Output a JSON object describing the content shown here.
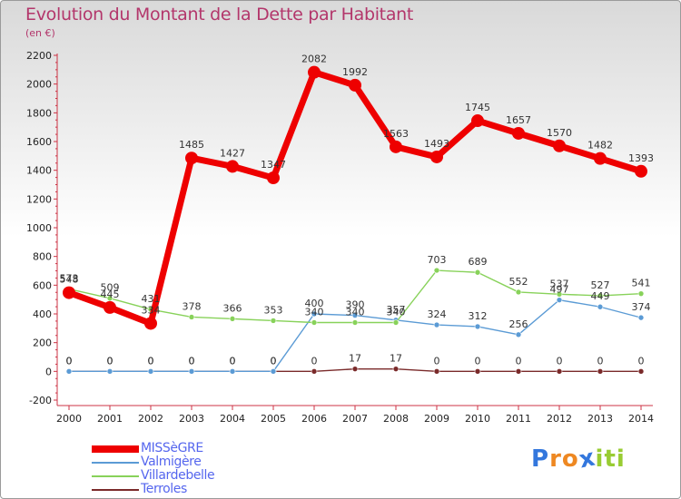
{
  "header": {
    "title": "Evolution du Montant de la Dette par Habitant",
    "subtitle": "(en €)"
  },
  "colors": {
    "title": "#b3366b",
    "legend_text": "#5566ee",
    "axis": "#cc3344"
  },
  "chart_data": {
    "type": "line",
    "title": "Evolution du Montant de la Dette par Habitant",
    "subtitle": "(en €)",
    "x": [
      "2000",
      "2001",
      "2002",
      "2003",
      "2004",
      "2005",
      "2006",
      "2007",
      "2008",
      "2009",
      "2010",
      "2011",
      "2012",
      "2013",
      "2014"
    ],
    "ylim": [
      -200,
      2200
    ],
    "yticks": [
      "-200",
      "0",
      "200",
      "400",
      "600",
      "800",
      "1000",
      "1200",
      "1400",
      "1600",
      "1800",
      "2000",
      "2200"
    ],
    "grid": false,
    "legend_position": "bottom-left",
    "series": [
      {
        "name": "MISSèGRE",
        "color": "#ee0000",
        "values": [
          548,
          445,
          334,
          1485,
          1427,
          1347,
          2082,
          1992,
          1563,
          1493,
          1745,
          1657,
          1570,
          1482,
          1393
        ],
        "labels": [
          "548",
          "445",
          "334",
          "1485",
          "1427",
          "1347",
          "2082",
          "1992",
          "1563",
          "1493",
          "1745",
          "1657",
          "1570",
          "1482",
          "1393"
        ]
      },
      {
        "name": "Valmigère",
        "color": "#5b9bd5",
        "values": [
          0,
          0,
          0,
          0,
          0,
          0,
          400,
          390,
          357,
          324,
          312,
          256,
          497,
          449,
          374
        ],
        "labels": [
          "0",
          "0",
          "0",
          "0",
          "0",
          "0",
          "400",
          "390",
          "357",
          "324",
          "312",
          "256",
          "497",
          "449",
          "374"
        ]
      },
      {
        "name": "Villardebelle",
        "color": "#88d25a",
        "values": [
          573,
          509,
          431,
          378,
          366,
          353,
          340,
          340,
          340,
          703,
          689,
          552,
          537,
          527,
          541
        ],
        "labels": [
          "573",
          "509",
          "431",
          "378",
          "366",
          "353",
          "340",
          "340",
          "340",
          "703",
          "689",
          "552",
          "537",
          "527",
          "541"
        ]
      },
      {
        "name": "Terroles",
        "color": "#7a2a2a",
        "values": [
          0,
          0,
          0,
          0,
          0,
          0,
          0,
          17,
          17,
          0,
          0,
          0,
          0,
          0,
          0
        ],
        "labels": [
          "0",
          "0",
          "0",
          "0",
          "0",
          "0",
          "0",
          "17",
          "17",
          "0",
          "0",
          "0",
          "0",
          "0",
          "0"
        ]
      }
    ]
  },
  "logo": {
    "text": "Proxiti",
    "letters": [
      "P",
      "r",
      "o",
      "x",
      "i",
      "t",
      "i"
    ],
    "colors": [
      "#3377dd",
      "#ee8822",
      "#ee8822",
      "#3377dd",
      "#99cc33",
      "#99cc33",
      "#99cc33"
    ]
  }
}
